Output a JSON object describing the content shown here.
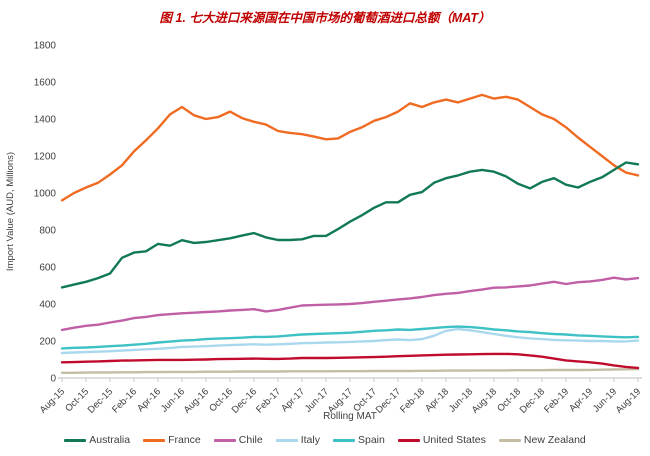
{
  "page_title": "图 1. 七大进口来源国在中国市场的葡萄酒进口总额（MAT）",
  "title_color": "#c00000",
  "axis_text_color": "#3f3f3f",
  "axis_line_color": "#c9c9c9",
  "chart_data": {
    "type": "line",
    "title": "图 1. 七大进口来源国在中国市场的葡萄酒进口总额（MAT）",
    "ylabel": "Import Value (AUD, Millions)",
    "xlabel": "Rolling MAT",
    "ylim": [
      0,
      1800
    ],
    "y_tick_step": 200,
    "grid": false,
    "legend_position": "bottom",
    "x_tick_every": 2,
    "x": [
      "Aug-15",
      "Sep-15",
      "Oct-15",
      "Nov-15",
      "Dec-15",
      "Jan-16",
      "Feb-16",
      "Mar-16",
      "Apr-16",
      "May-16",
      "Jun-16",
      "Jul-16",
      "Aug-16",
      "Sep-16",
      "Oct-16",
      "Nov-16",
      "Dec-16",
      "Jan-17",
      "Feb-17",
      "Mar-17",
      "Apr-17",
      "May-17",
      "Jun-17",
      "Jul-17",
      "Aug-17",
      "Sep-17",
      "Oct-17",
      "Nov-17",
      "Dec-17",
      "Jan-18",
      "Feb-18",
      "Mar-18",
      "Apr-18",
      "May-18",
      "Jun-18",
      "Jul-18",
      "Aug-18",
      "Sep-18",
      "Oct-18",
      "Nov-18",
      "Dec-18",
      "Jan-19",
      "Feb-19",
      "Mar-19",
      "Apr-19",
      "May-19",
      "Jun-19",
      "Jul-19",
      "Aug-19"
    ],
    "x_tick_labels": [
      "Aug-15",
      "Oct-15",
      "Dec-15",
      "Feb-16",
      "Apr-16",
      "Jun-16",
      "Aug-16",
      "Oct-16",
      "Dec-16",
      "Feb-17",
      "Apr-17",
      "Jun-17",
      "Aug-17",
      "Oct-17",
      "Dec-17",
      "Feb-18",
      "Apr-18",
      "Jun-18",
      "Aug-18",
      "Oct-18",
      "Dec-18",
      "Feb-19",
      "Apr-19",
      "Jun-19",
      "Aug-19"
    ],
    "series": [
      {
        "name": "Australia",
        "color": "#117a53",
        "values": [
          490,
          505,
          520,
          540,
          565,
          650,
          678,
          685,
          725,
          715,
          745,
          730,
          735,
          745,
          755,
          770,
          783,
          760,
          746,
          746,
          750,
          768,
          768,
          805,
          845,
          880,
          920,
          950,
          950,
          990,
          1005,
          1055,
          1080,
          1095,
          1115,
          1125,
          1115,
          1090,
          1050,
          1025,
          1060,
          1080,
          1045,
          1030,
          1060,
          1085,
          1125,
          1165,
          1155
        ]
      },
      {
        "name": "France",
        "color": "#f06b22",
        "values": [
          960,
          1000,
          1030,
          1055,
          1100,
          1150,
          1225,
          1285,
          1350,
          1425,
          1465,
          1420,
          1400,
          1410,
          1440,
          1405,
          1385,
          1370,
          1335,
          1325,
          1318,
          1305,
          1290,
          1295,
          1330,
          1355,
          1390,
          1410,
          1440,
          1485,
          1465,
          1490,
          1505,
          1490,
          1510,
          1530,
          1510,
          1520,
          1505,
          1465,
          1425,
          1400,
          1355,
          1300,
          1250,
          1200,
          1150,
          1110,
          1095
        ]
      },
      {
        "name": "Chile",
        "color": "#c05fa6",
        "values": [
          260,
          272,
          282,
          288,
          300,
          310,
          324,
          330,
          340,
          345,
          350,
          353,
          357,
          360,
          365,
          368,
          372,
          360,
          368,
          380,
          392,
          394,
          396,
          398,
          400,
          405,
          412,
          418,
          425,
          430,
          438,
          448,
          455,
          460,
          470,
          478,
          488,
          490,
          495,
          500,
          510,
          520,
          508,
          518,
          522,
          530,
          542,
          533,
          540
        ]
      },
      {
        "name": "Italy",
        "color": "#a9d8ee",
        "values": [
          135,
          138,
          140,
          142,
          145,
          148,
          152,
          155,
          158,
          162,
          168,
          170,
          172,
          175,
          178,
          180,
          182,
          180,
          182,
          185,
          188,
          190,
          192,
          193,
          195,
          198,
          200,
          205,
          208,
          205,
          210,
          228,
          255,
          265,
          258,
          248,
          238,
          228,
          220,
          214,
          210,
          206,
          204,
          202,
          200,
          200,
          198,
          198,
          202
        ]
      },
      {
        "name": "Spain",
        "color": "#3ec1c5",
        "values": [
          160,
          163,
          165,
          168,
          172,
          175,
          180,
          185,
          192,
          197,
          202,
          205,
          210,
          213,
          215,
          218,
          222,
          222,
          225,
          230,
          235,
          238,
          240,
          242,
          245,
          250,
          255,
          258,
          262,
          260,
          265,
          270,
          275,
          278,
          275,
          270,
          262,
          258,
          252,
          248,
          242,
          238,
          235,
          230,
          228,
          225,
          222,
          220,
          222
        ]
      },
      {
        "name": "United States",
        "color": "#c00b2d",
        "values": [
          85,
          86,
          88,
          90,
          92,
          94,
          95,
          96,
          98,
          98,
          98,
          99,
          100,
          102,
          103,
          104,
          105,
          104,
          103,
          105,
          108,
          108,
          108,
          109,
          110,
          112,
          113,
          115,
          118,
          120,
          122,
          124,
          126,
          127,
          128,
          129,
          130,
          130,
          128,
          122,
          115,
          105,
          95,
          90,
          85,
          78,
          68,
          60,
          54
        ]
      },
      {
        "name": "New Zealand",
        "color": "#c5bca4",
        "values": [
          28,
          28,
          29,
          30,
          30,
          31,
          31,
          32,
          32,
          33,
          33,
          33,
          34,
          34,
          34,
          35,
          35,
          35,
          35,
          36,
          36,
          36,
          36,
          37,
          37,
          37,
          38,
          38,
          38,
          38,
          39,
          39,
          40,
          40,
          40,
          41,
          41,
          41,
          42,
          42,
          42,
          43,
          43,
          43,
          44,
          45,
          46,
          47,
          48
        ]
      }
    ]
  }
}
